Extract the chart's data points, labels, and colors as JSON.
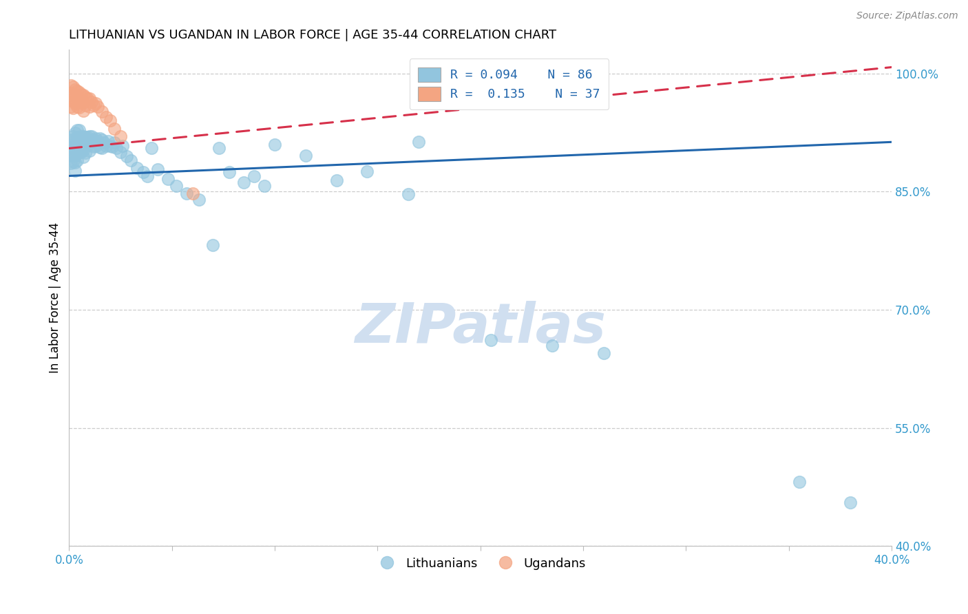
{
  "title": "LITHUANIAN VS UGANDAN IN LABOR FORCE | AGE 35-44 CORRELATION CHART",
  "source": "Source: ZipAtlas.com",
  "ylabel": "In Labor Force | Age 35-44",
  "xlabel": "",
  "xlim": [
    0.0,
    0.4
  ],
  "ylim": [
    0.4,
    1.03
  ],
  "yticks": [
    0.4,
    0.55,
    0.7,
    0.85,
    1.0
  ],
  "xticks": [
    0.0,
    0.05,
    0.1,
    0.15,
    0.2,
    0.25,
    0.3,
    0.35,
    0.4
  ],
  "ytick_labels": [
    "40.0%",
    "55.0%",
    "70.0%",
    "85.0%",
    "100.0%"
  ],
  "blue_color": "#92c5de",
  "pink_color": "#f4a582",
  "blue_line_color": "#2166ac",
  "pink_line_color": "#d6304a",
  "watermark_color": "#d0dff0",
  "blue_line_y0": 0.87,
  "blue_line_y1": 0.913,
  "pink_line_y0": 0.905,
  "pink_line_y1": 1.008,
  "blue_scatter_x": [
    0.001,
    0.001,
    0.001,
    0.001,
    0.002,
    0.002,
    0.002,
    0.002,
    0.002,
    0.003,
    0.003,
    0.003,
    0.003,
    0.003,
    0.003,
    0.004,
    0.004,
    0.004,
    0.004,
    0.004,
    0.005,
    0.005,
    0.005,
    0.005,
    0.006,
    0.006,
    0.006,
    0.007,
    0.007,
    0.007,
    0.007,
    0.008,
    0.008,
    0.008,
    0.009,
    0.009,
    0.01,
    0.01,
    0.01,
    0.011,
    0.011,
    0.012,
    0.012,
    0.013,
    0.013,
    0.014,
    0.015,
    0.015,
    0.016,
    0.016,
    0.017,
    0.018,
    0.019,
    0.02,
    0.021,
    0.022,
    0.023,
    0.025,
    0.026,
    0.028,
    0.03,
    0.033,
    0.036,
    0.038,
    0.04,
    0.043,
    0.048,
    0.052,
    0.057,
    0.063,
    0.07,
    0.073,
    0.078,
    0.085,
    0.09,
    0.095,
    0.1,
    0.115,
    0.13,
    0.145,
    0.165,
    0.17,
    0.205,
    0.235,
    0.26,
    0.355,
    0.38
  ],
  "blue_scatter_y": [
    0.916,
    0.906,
    0.896,
    0.886,
    0.92,
    0.91,
    0.903,
    0.896,
    0.888,
    0.925,
    0.916,
    0.906,
    0.896,
    0.887,
    0.877,
    0.928,
    0.919,
    0.91,
    0.899,
    0.89,
    0.928,
    0.919,
    0.91,
    0.9,
    0.92,
    0.912,
    0.9,
    0.92,
    0.912,
    0.903,
    0.894,
    0.919,
    0.909,
    0.899,
    0.919,
    0.909,
    0.92,
    0.912,
    0.902,
    0.92,
    0.912,
    0.916,
    0.907,
    0.918,
    0.908,
    0.914,
    0.918,
    0.906,
    0.916,
    0.905,
    0.912,
    0.908,
    0.914,
    0.908,
    0.907,
    0.912,
    0.905,
    0.9,
    0.908,
    0.895,
    0.89,
    0.88,
    0.875,
    0.87,
    0.905,
    0.878,
    0.866,
    0.857,
    0.848,
    0.84,
    0.782,
    0.905,
    0.875,
    0.862,
    0.87,
    0.857,
    0.91,
    0.896,
    0.864,
    0.876,
    0.847,
    0.913,
    0.662,
    0.655,
    0.645,
    0.482,
    0.455
  ],
  "pink_scatter_x": [
    0.001,
    0.001,
    0.001,
    0.001,
    0.002,
    0.002,
    0.002,
    0.002,
    0.003,
    0.003,
    0.003,
    0.004,
    0.004,
    0.004,
    0.005,
    0.005,
    0.005,
    0.006,
    0.006,
    0.007,
    0.007,
    0.007,
    0.008,
    0.008,
    0.009,
    0.01,
    0.01,
    0.011,
    0.012,
    0.013,
    0.014,
    0.016,
    0.018,
    0.02,
    0.022,
    0.025,
    0.06
  ],
  "pink_scatter_y": [
    0.985,
    0.975,
    0.967,
    0.958,
    0.983,
    0.974,
    0.965,
    0.956,
    0.98,
    0.972,
    0.962,
    0.978,
    0.968,
    0.958,
    0.976,
    0.967,
    0.957,
    0.974,
    0.964,
    0.973,
    0.963,
    0.953,
    0.97,
    0.96,
    0.968,
    0.968,
    0.958,
    0.964,
    0.96,
    0.962,
    0.958,
    0.952,
    0.945,
    0.94,
    0.93,
    0.92,
    0.848
  ]
}
